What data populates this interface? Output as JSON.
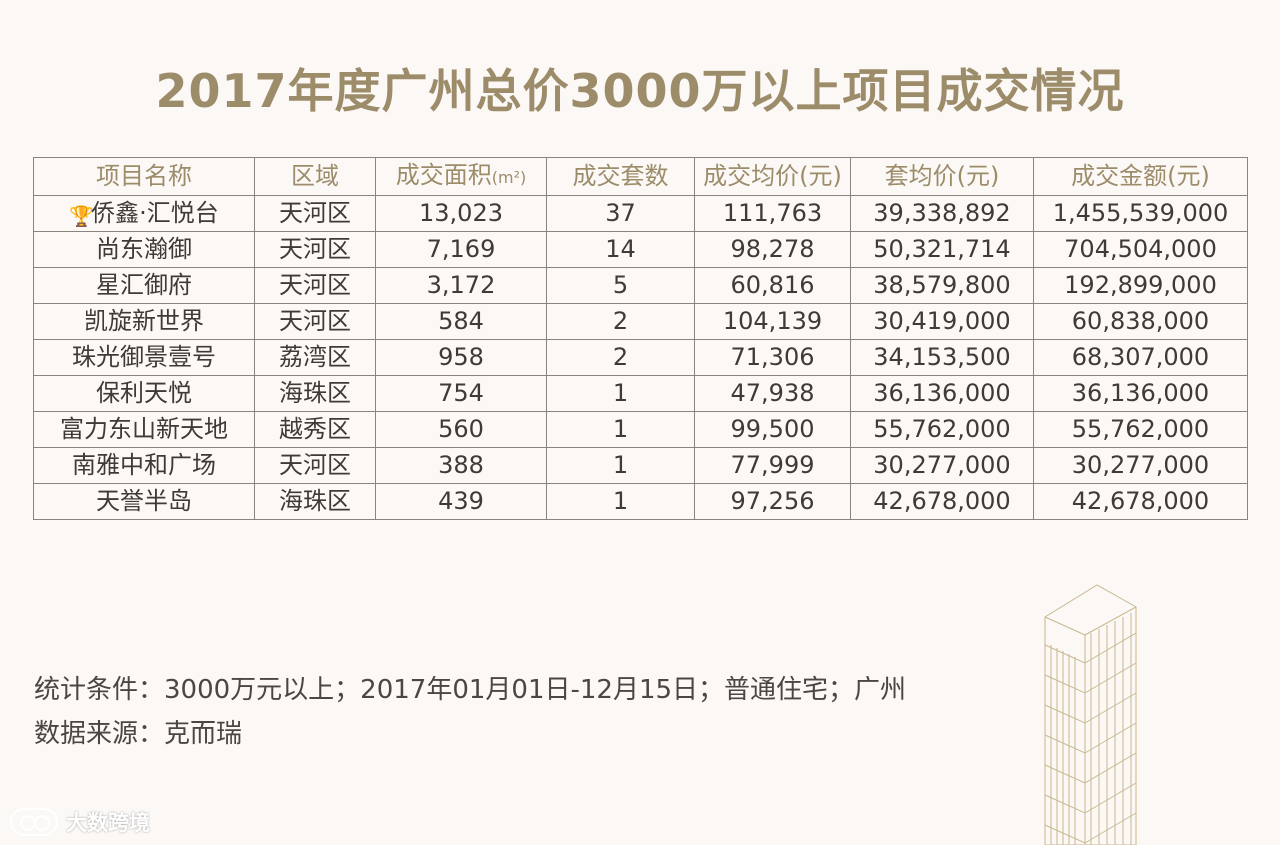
{
  "page": {
    "title": "2017年度广州总价3000万以上项目成交情况"
  },
  "table": {
    "headers": {
      "project": "项目名称",
      "district": "区域",
      "area": "成交面积",
      "area_unit": "(m²)",
      "units": "成交套数",
      "avg_price": "成交均价",
      "avg_price_unit": "(元)",
      "unit_price": "套均价",
      "unit_price_unit": "(元)",
      "total": "成交金额",
      "total_unit": "(元)"
    },
    "rows": [
      {
        "project": "侨鑫·汇悦台",
        "district": "天河区",
        "area": "13,023",
        "units": "37",
        "avg_price": "111,763",
        "unit_price": "39,338,892",
        "total": "1,455,539,000"
      },
      {
        "project": "尚东瀚御",
        "district": "天河区",
        "area": "7,169",
        "units": "14",
        "avg_price": "98,278",
        "unit_price": "50,321,714",
        "total": "704,504,000"
      },
      {
        "project": "星汇御府",
        "district": "天河区",
        "area": "3,172",
        "units": "5",
        "avg_price": "60,816",
        "unit_price": "38,579,800",
        "total": "192,899,000"
      },
      {
        "project": "凯旋新世界",
        "district": "天河区",
        "area": "584",
        "units": "2",
        "avg_price": "104,139",
        "unit_price": "30,419,000",
        "total": "60,838,000"
      },
      {
        "project": "珠光御景壹号",
        "district": "荔湾区",
        "area": "958",
        "units": "2",
        "avg_price": "71,306",
        "unit_price": "34,153,500",
        "total": "68,307,000"
      },
      {
        "project": "保利天悦",
        "district": "海珠区",
        "area": "754",
        "units": "1",
        "avg_price": "47,938",
        "unit_price": "36,136,000",
        "total": "36,136,000"
      },
      {
        "project": "富力东山新天地",
        "district": "越秀区",
        "area": "560",
        "units": "1",
        "avg_price": "99,500",
        "unit_price": "55,762,000",
        "total": "55,762,000"
      },
      {
        "project": "南雅中和广场",
        "district": "天河区",
        "area": "388",
        "units": "1",
        "avg_price": "77,999",
        "unit_price": "30,277,000",
        "total": "30,277,000"
      },
      {
        "project": "天誉半岛",
        "district": "海珠区",
        "area": "439",
        "units": "1",
        "avg_price": "97,256",
        "unit_price": "42,678,000",
        "total": "42,678,000"
      }
    ]
  },
  "notes": {
    "conditions": "统计条件：3000万元以上；2017年01月01日-12月15日；普通住宅；广州",
    "source": "数据来源：克而瑞"
  },
  "watermark": {
    "text": "大数跨境"
  },
  "colors": {
    "accent": "#9c8c6a",
    "text": "#3f3a36",
    "background": "#fbf8f6",
    "border": "#8a847d"
  }
}
